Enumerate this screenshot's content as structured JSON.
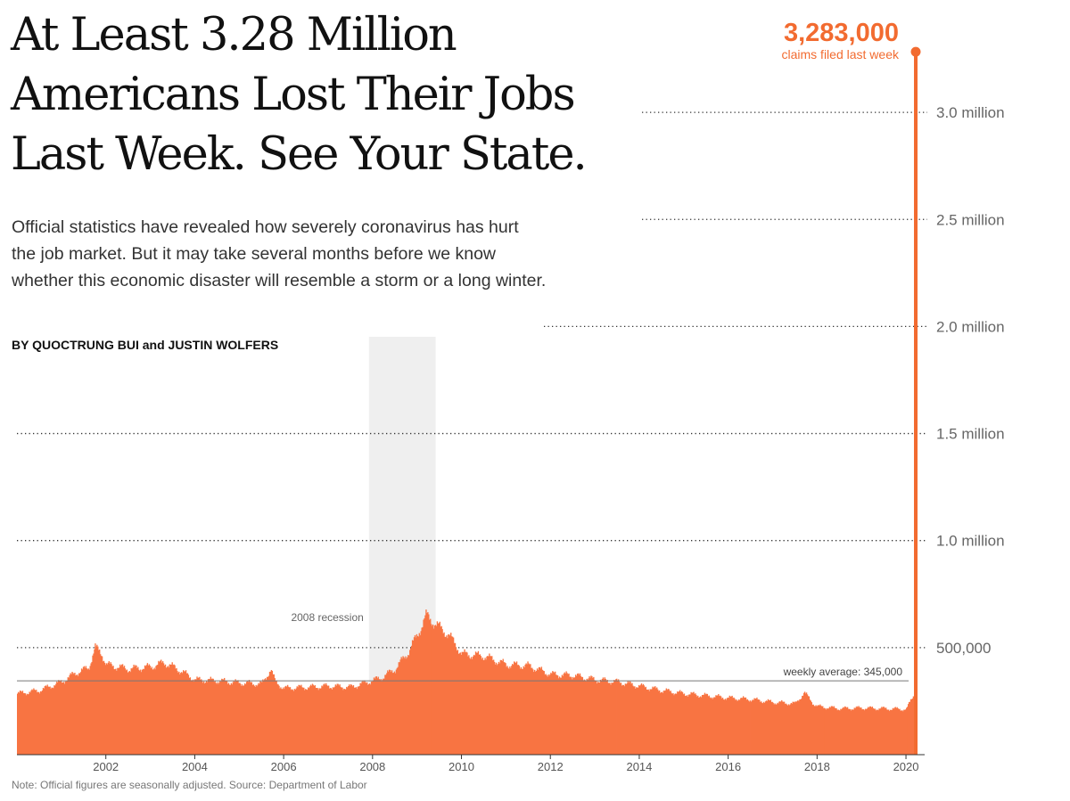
{
  "headline": "At Least 3.28 Million Americans Lost Their Jobs Last Week. See Your State.",
  "summary": "Official statistics have revealed how severely coronavirus has hurt the job market. But it may take several months before we know whether this economic disaster will resemble a storm or a long winter.",
  "byline": "BY QUOCTRUNG BUI and JUSTIN WOLFERS",
  "note": "Note: Official figures are seasonally adjusted. Source: Department of Labor",
  "colors": {
    "bar": "#f87442",
    "accent": "#f26b30",
    "recession": "#efefef",
    "grid": "#333333",
    "axis_text": "#666666"
  },
  "chart_data": {
    "type": "bar",
    "x_range": [
      2000.0,
      2020.3
    ],
    "ylim": [
      0,
      3400000
    ],
    "grid": true,
    "y_ticks": [
      {
        "value": 500000,
        "label": "500,000"
      },
      {
        "value": 1000000,
        "label": "1.0 million"
      },
      {
        "value": 1500000,
        "label": "1.5 million"
      },
      {
        "value": 2000000,
        "label": "2.0 million"
      },
      {
        "value": 2500000,
        "label": "2.5 million"
      },
      {
        "value": 3000000,
        "label": "3.0 million"
      }
    ],
    "x_ticks": [
      {
        "value": 2002,
        "label": "2002"
      },
      {
        "value": 2004,
        "label": "2004"
      },
      {
        "value": 2006,
        "label": "2006"
      },
      {
        "value": 2008,
        "label": "2008"
      },
      {
        "value": 2010,
        "label": "2010"
      },
      {
        "value": 2012,
        "label": "2012"
      },
      {
        "value": 2014,
        "label": "2014"
      },
      {
        "value": 2016,
        "label": "2016"
      },
      {
        "value": 2018,
        "label": "2018"
      },
      {
        "value": 2020,
        "label": "2020"
      }
    ],
    "recession": {
      "start": 2007.92,
      "end": 2009.42,
      "label": "2008 recession"
    },
    "average": {
      "value": 345000,
      "label": "weekly average: 345,000"
    },
    "highlight": {
      "x": 2020.22,
      "value": 3283000,
      "value_label": "3,283,000",
      "caption": "claims filed last week"
    },
    "weekly_claims": [
      {
        "x": 2000.0,
        "y": 285000
      },
      {
        "x": 2000.5,
        "y": 300000
      },
      {
        "x": 2001.0,
        "y": 340000
      },
      {
        "x": 2001.3,
        "y": 380000
      },
      {
        "x": 2001.6,
        "y": 405000
      },
      {
        "x": 2001.75,
        "y": 500000
      },
      {
        "x": 2001.9,
        "y": 470000
      },
      {
        "x": 2002.0,
        "y": 420000
      },
      {
        "x": 2002.5,
        "y": 400000
      },
      {
        "x": 2003.0,
        "y": 410000
      },
      {
        "x": 2003.3,
        "y": 430000
      },
      {
        "x": 2003.6,
        "y": 400000
      },
      {
        "x": 2004.0,
        "y": 350000
      },
      {
        "x": 2004.5,
        "y": 345000
      },
      {
        "x": 2005.0,
        "y": 335000
      },
      {
        "x": 2005.5,
        "y": 330000
      },
      {
        "x": 2005.7,
        "y": 400000
      },
      {
        "x": 2005.8,
        "y": 340000
      },
      {
        "x": 2006.0,
        "y": 310000
      },
      {
        "x": 2006.5,
        "y": 315000
      },
      {
        "x": 2007.0,
        "y": 320000
      },
      {
        "x": 2007.5,
        "y": 315000
      },
      {
        "x": 2007.9,
        "y": 340000
      },
      {
        "x": 2008.2,
        "y": 360000
      },
      {
        "x": 2008.5,
        "y": 400000
      },
      {
        "x": 2008.8,
        "y": 480000
      },
      {
        "x": 2009.0,
        "y": 560000
      },
      {
        "x": 2009.2,
        "y": 650000
      },
      {
        "x": 2009.4,
        "y": 610000
      },
      {
        "x": 2009.7,
        "y": 560000
      },
      {
        "x": 2010.0,
        "y": 470000
      },
      {
        "x": 2010.5,
        "y": 460000
      },
      {
        "x": 2011.0,
        "y": 420000
      },
      {
        "x": 2011.5,
        "y": 415000
      },
      {
        "x": 2012.0,
        "y": 375000
      },
      {
        "x": 2012.5,
        "y": 370000
      },
      {
        "x": 2013.0,
        "y": 350000
      },
      {
        "x": 2013.5,
        "y": 340000
      },
      {
        "x": 2014.0,
        "y": 320000
      },
      {
        "x": 2014.5,
        "y": 300000
      },
      {
        "x": 2015.0,
        "y": 285000
      },
      {
        "x": 2015.5,
        "y": 275000
      },
      {
        "x": 2016.0,
        "y": 265000
      },
      {
        "x": 2016.5,
        "y": 258000
      },
      {
        "x": 2017.0,
        "y": 245000
      },
      {
        "x": 2017.5,
        "y": 238000
      },
      {
        "x": 2017.7,
        "y": 290000
      },
      {
        "x": 2017.9,
        "y": 240000
      },
      {
        "x": 2018.0,
        "y": 225000
      },
      {
        "x": 2018.5,
        "y": 215000
      },
      {
        "x": 2019.0,
        "y": 218000
      },
      {
        "x": 2019.5,
        "y": 215000
      },
      {
        "x": 2020.0,
        "y": 212000
      },
      {
        "x": 2020.17,
        "y": 282000
      }
    ]
  }
}
